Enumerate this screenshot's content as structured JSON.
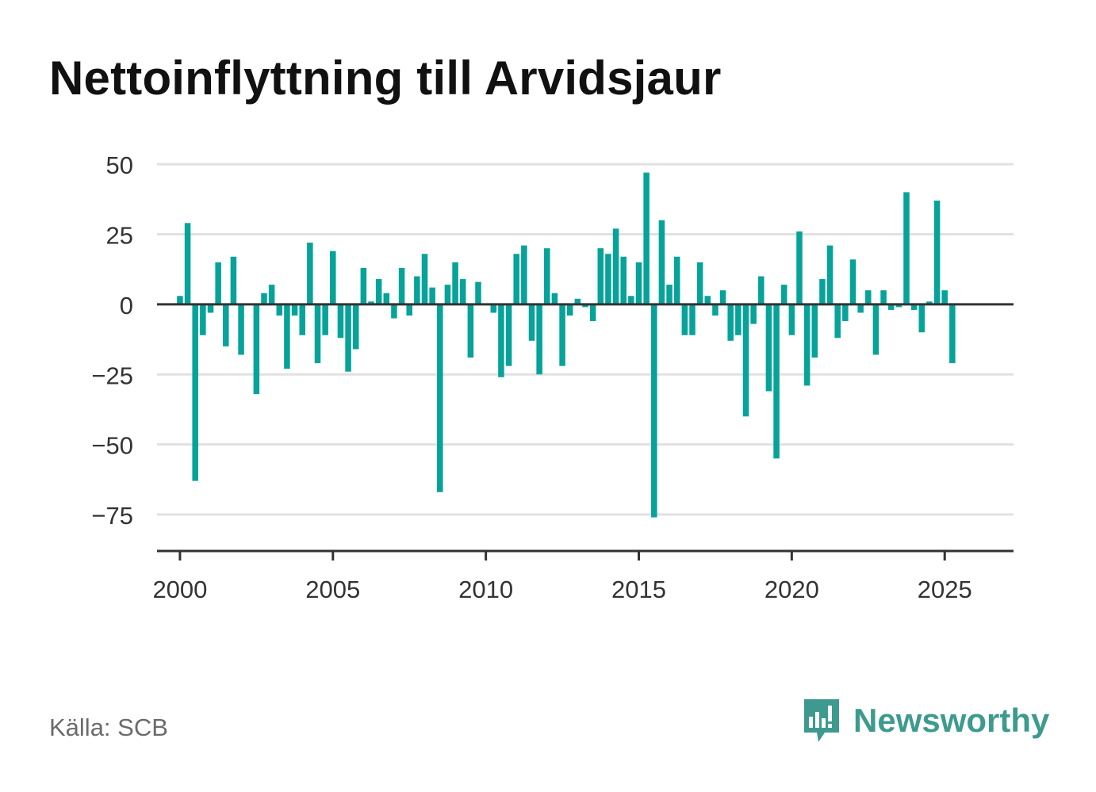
{
  "title": "Nettoinflyttning till Arvidsjaur",
  "source": "Källa: SCB",
  "brand": {
    "name": "Newsworthy",
    "icon": "newsworthy-logo-icon",
    "color": "#3e9a8f"
  },
  "colors": {
    "bar": "#06a39a",
    "grid": "#e1e1e1",
    "axis": "#333333",
    "text": "#333333"
  },
  "chart_data": {
    "type": "bar",
    "title": "Nettoinflyttning till Arvidsjaur",
    "xlabel": "",
    "ylabel": "",
    "x_unit": "quarter",
    "ylim": [
      -88,
      52
    ],
    "xlim": [
      1999.25,
      2027.25
    ],
    "yticks": [
      50,
      25,
      0,
      -25,
      -50,
      -75
    ],
    "ytick_labels": [
      "50",
      "25",
      "0",
      "−25",
      "−50",
      "−75"
    ],
    "xticks": [
      2000,
      2005,
      2010,
      2015,
      2020,
      2025
    ],
    "xtick_labels": [
      "2000",
      "2005",
      "2010",
      "2015",
      "2020",
      "2025"
    ],
    "grid": true,
    "legend": "none",
    "series": [
      {
        "x": [
          "2000 Q1",
          "2000 Q2",
          "2000 Q3",
          "2000 Q4",
          "2001 Q1",
          "2001 Q2",
          "2001 Q3",
          "2001 Q4",
          "2002 Q1",
          "2002 Q2",
          "2002 Q3",
          "2002 Q4",
          "2003 Q1",
          "2003 Q2",
          "2003 Q3",
          "2003 Q4",
          "2004 Q1",
          "2004 Q2",
          "2004 Q3",
          "2004 Q4",
          "2005 Q1",
          "2005 Q2",
          "2005 Q3",
          "2005 Q4",
          "2006 Q1",
          "2006 Q2",
          "2006 Q3",
          "2006 Q4",
          "2007 Q1",
          "2007 Q2",
          "2007 Q3",
          "2007 Q4",
          "2008 Q1",
          "2008 Q2",
          "2008 Q3",
          "2008 Q4",
          "2009 Q1",
          "2009 Q2",
          "2009 Q3",
          "2009 Q4",
          "2010 Q1",
          "2010 Q2",
          "2010 Q3",
          "2010 Q4",
          "2011 Q1",
          "2011 Q2",
          "2011 Q3",
          "2011 Q4",
          "2012 Q1",
          "2012 Q2",
          "2012 Q3",
          "2012 Q4",
          "2013 Q1",
          "2013 Q2",
          "2013 Q3",
          "2013 Q4",
          "2014 Q1",
          "2014 Q2",
          "2014 Q3",
          "2014 Q4",
          "2015 Q1",
          "2015 Q2",
          "2015 Q3",
          "2015 Q4",
          "2016 Q1",
          "2016 Q2",
          "2016 Q3",
          "2016 Q4",
          "2017 Q1",
          "2017 Q2",
          "2017 Q3",
          "2017 Q4",
          "2018 Q1",
          "2018 Q2",
          "2018 Q3",
          "2018 Q4",
          "2019 Q1",
          "2019 Q2",
          "2019 Q3",
          "2019 Q4",
          "2020 Q1",
          "2020 Q2",
          "2020 Q3",
          "2020 Q4",
          "2021 Q1",
          "2021 Q2",
          "2021 Q3",
          "2021 Q4",
          "2022 Q1",
          "2022 Q2",
          "2022 Q3",
          "2022 Q4",
          "2023 Q1",
          "2023 Q2",
          "2023 Q3",
          "2023 Q4",
          "2024 Q1",
          "2024 Q2",
          "2024 Q3",
          "2024 Q4",
          "2025 Q1",
          "2025 Q2"
        ],
        "values": [
          3,
          29,
          -63,
          -11,
          -3,
          15,
          -15,
          17,
          -18,
          0,
          -32,
          4,
          7,
          -4,
          -23,
          -4,
          -11,
          22,
          -21,
          -11,
          19,
          -12,
          -24,
          -16,
          13,
          1,
          9,
          4,
          -5,
          13,
          -4,
          10,
          18,
          6,
          -67,
          7,
          15,
          9,
          -19,
          8,
          0,
          -3,
          -26,
          -22,
          18,
          21,
          -13,
          -25,
          20,
          4,
          -22,
          -4,
          2,
          -1,
          -6,
          20,
          18,
          27,
          17,
          3,
          15,
          47,
          -76,
          30,
          7,
          17,
          -11,
          -11,
          15,
          3,
          -4,
          5,
          -13,
          -11,
          -40,
          -7,
          10,
          -31,
          -55,
          7,
          -11,
          26,
          -29,
          -19,
          9,
          21,
          -12,
          -6,
          16,
          -3,
          5,
          -18,
          5,
          -2,
          -1,
          40,
          -2,
          -10,
          1,
          37,
          5,
          -21
        ]
      }
    ]
  }
}
